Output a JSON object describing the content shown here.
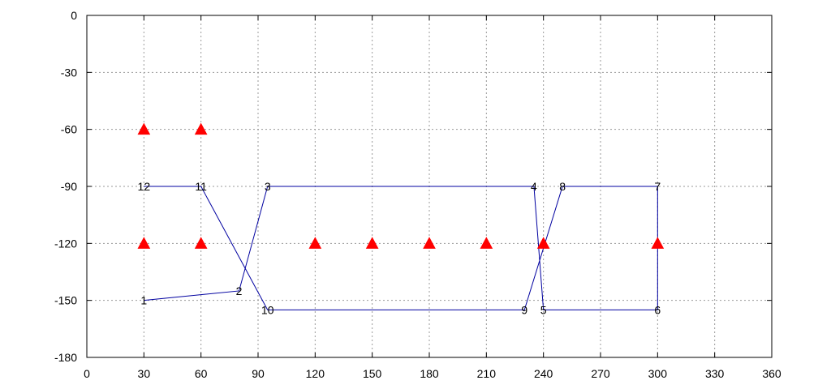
{
  "chart_data": {
    "type": "scatter",
    "title": "",
    "xlabel": "",
    "ylabel": "",
    "xlim": [
      0,
      360
    ],
    "ylim": [
      -180,
      0
    ],
    "x_ticks": [
      0,
      30,
      60,
      90,
      120,
      150,
      180,
      210,
      240,
      270,
      300,
      330,
      360
    ],
    "y_ticks": [
      0,
      -30,
      -60,
      -90,
      -120,
      -150,
      -180
    ],
    "grid": true,
    "series": [
      {
        "kind": "path",
        "color": "#0000a0",
        "points": [
          {
            "label": "1",
            "x": 30,
            "y": -150
          },
          {
            "label": "2",
            "x": 80,
            "y": -145
          },
          {
            "label": "3",
            "x": 95,
            "y": -90
          },
          {
            "label": "4",
            "x": 235,
            "y": -90
          },
          {
            "label": "5",
            "x": 240,
            "y": -155
          },
          {
            "label": "6",
            "x": 300,
            "y": -155
          },
          {
            "label": "7",
            "x": 300,
            "y": -90
          },
          {
            "label": "8",
            "x": 250,
            "y": -90
          },
          {
            "label": "9",
            "x": 230,
            "y": -155
          },
          {
            "label": "10",
            "x": 95,
            "y": -155
          },
          {
            "label": "11",
            "x": 60,
            "y": -90
          },
          {
            "label": "12",
            "x": 30,
            "y": -90
          }
        ]
      },
      {
        "kind": "markers",
        "marker": "triangle",
        "color": "#ff0000",
        "points": [
          {
            "x": 30,
            "y": -60
          },
          {
            "x": 60,
            "y": -60
          },
          {
            "x": 30,
            "y": -120
          },
          {
            "x": 60,
            "y": -120
          },
          {
            "x": 120,
            "y": -120
          },
          {
            "x": 150,
            "y": -120
          },
          {
            "x": 180,
            "y": -120
          },
          {
            "x": 210,
            "y": -120
          },
          {
            "x": 240,
            "y": -120
          },
          {
            "x": 300,
            "y": -120
          }
        ]
      }
    ]
  }
}
